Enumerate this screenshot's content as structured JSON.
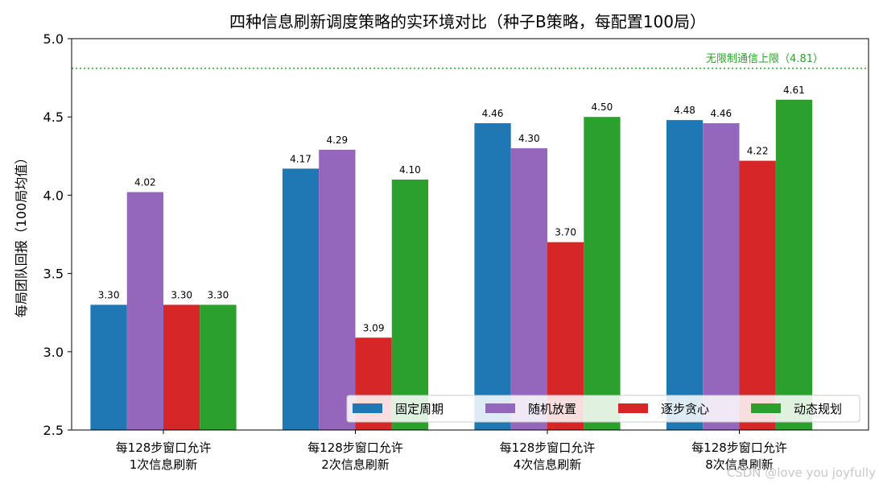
{
  "chart_data": {
    "type": "bar",
    "title": "四种信息刷新调度策略的实环境对比（种子B策略，每配置100局）",
    "xlabel": "",
    "ylabel": "每局团队回报（100局均值）",
    "ylim": [
      2.5,
      5.0
    ],
    "yticks": [
      "2.5",
      "3.0",
      "3.5",
      "4.0",
      "4.5",
      "5.0"
    ],
    "categories": [
      [
        "每128步窗口允许",
        "1次信息刷新"
      ],
      [
        "每128步窗口允许",
        "2次信息刷新"
      ],
      [
        "每128步窗口允许",
        "4次信息刷新"
      ],
      [
        "每128步窗口允许",
        "8次信息刷新"
      ]
    ],
    "series": [
      {
        "name": "固定周期",
        "color": "#1f77b4",
        "values": [
          3.3,
          4.17,
          4.46,
          4.48
        ],
        "labels": [
          "3.30",
          "4.17",
          "4.46",
          "4.48"
        ]
      },
      {
        "name": "随机放置",
        "color": "#9467bd",
        "values": [
          4.02,
          4.29,
          4.3,
          4.46
        ],
        "labels": [
          "4.02",
          "4.29",
          "4.30",
          "4.46"
        ]
      },
      {
        "name": "逐步贪心",
        "color": "#d62728",
        "values": [
          3.3,
          3.09,
          3.7,
          4.22
        ],
        "labels": [
          "3.30",
          "3.09",
          "3.70",
          "4.22"
        ]
      },
      {
        "name": "动态规划",
        "color": "#2ca02c",
        "values": [
          3.3,
          4.1,
          4.5,
          4.61
        ],
        "labels": [
          "3.30",
          "4.10",
          "4.50",
          "4.61"
        ]
      }
    ],
    "reference_line": {
      "value": 4.81,
      "label": "无限制通信上限（4.81）",
      "color": "#2ca02c",
      "style": "dotted"
    },
    "legend": {
      "placement": "bottom-right",
      "columns": 4
    },
    "grid": false
  },
  "watermark": "CSDN @love you joyfully"
}
